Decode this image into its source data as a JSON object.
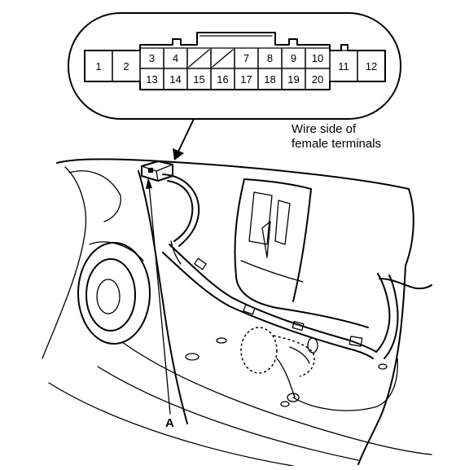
{
  "connector": {
    "top_row": [
      "1",
      "2",
      "3",
      "4",
      "",
      "",
      "7",
      "8",
      "9",
      "10",
      "11",
      "12"
    ],
    "bottom_row": [
      "13",
      "14",
      "15",
      "16",
      "17",
      "18",
      "19",
      "20"
    ]
  },
  "labels": {
    "wire_side_line1": "Wire side of",
    "wire_side_line2": "female terminals",
    "callout_a": "A"
  }
}
